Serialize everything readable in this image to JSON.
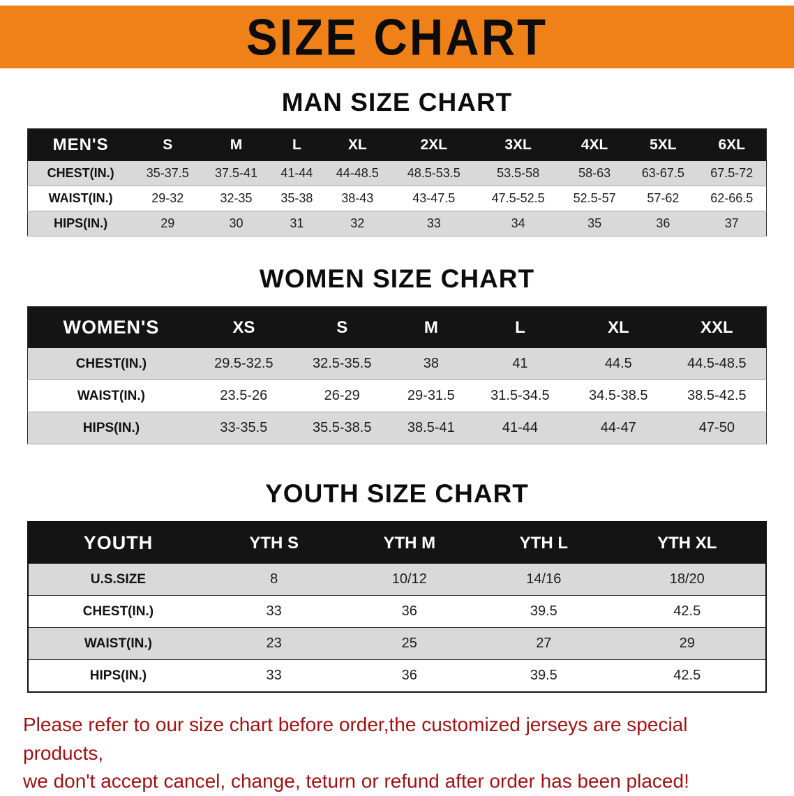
{
  "banner": {
    "title": "SIZE CHART"
  },
  "men": {
    "heading": "MAN SIZE CHART",
    "label": "MEN'S",
    "columns": [
      "S",
      "M",
      "L",
      "XL",
      "2XL",
      "3XL",
      "4XL",
      "5XL",
      "6XL"
    ],
    "rows": [
      {
        "label": "CHEST(IN.)",
        "values": [
          "35-37.5",
          "37.5-41",
          "41-44",
          "44-48.5",
          "48.5-53.5",
          "53.5-58",
          "58-63",
          "63-67.5",
          "67.5-72"
        ]
      },
      {
        "label": "WAIST(IN.)",
        "values": [
          "29-32",
          "32-35",
          "35-38",
          "38-43",
          "43-47.5",
          "47.5-52.5",
          "52.5-57",
          "57-62",
          "62-66.5"
        ]
      },
      {
        "label": "HIPS(IN.)",
        "values": [
          "29",
          "30",
          "31",
          "32",
          "33",
          "34",
          "35",
          "36",
          "37"
        ]
      }
    ]
  },
  "women": {
    "heading": "WOMEN SIZE CHART",
    "label": "WOMEN'S",
    "columns": [
      "XS",
      "S",
      "M",
      "L",
      "XL",
      "XXL"
    ],
    "rows": [
      {
        "label": "CHEST(IN.)",
        "values": [
          "29.5-32.5",
          "32.5-35.5",
          "38",
          "41",
          "44.5",
          "44.5-48.5"
        ]
      },
      {
        "label": "WAIST(IN.)",
        "values": [
          "23.5-26",
          "26-29",
          "29-31.5",
          "31.5-34.5",
          "34.5-38.5",
          "38.5-42.5"
        ]
      },
      {
        "label": "HIPS(IN.)",
        "values": [
          "33-35.5",
          "35.5-38.5",
          "38.5-41",
          "41-44",
          "44-47",
          "47-50"
        ]
      }
    ]
  },
  "youth": {
    "heading": "YOUTH SIZE CHART",
    "label": "YOUTH",
    "columns": [
      "YTH S",
      "YTH M",
      "YTH L",
      "YTH XL"
    ],
    "rows": [
      {
        "label": "U.S.SIZE",
        "values": [
          "8",
          "10/12",
          "14/16",
          "18/20"
        ]
      },
      {
        "label": "CHEST(IN.)",
        "values": [
          "33",
          "36",
          "39.5",
          "42.5"
        ]
      },
      {
        "label": "WAIST(IN.)",
        "values": [
          "23",
          "25",
          "27",
          "29"
        ]
      },
      {
        "label": "HIPS(IN.)",
        "values": [
          "33",
          "36",
          "39.5",
          "42.5"
        ]
      }
    ]
  },
  "disclaimer": {
    "line1": "Please refer to our size chart before order,the customized jerseys are special products,",
    "line2": "we don't accept cancel, change, teturn or refund after order has been placed!"
  },
  "colors": {
    "banner_orange": "#f08119",
    "table_header_black": "#141414",
    "row_alt_gray": "#d9d9d9",
    "disclaimer_red": "#9e1212"
  }
}
